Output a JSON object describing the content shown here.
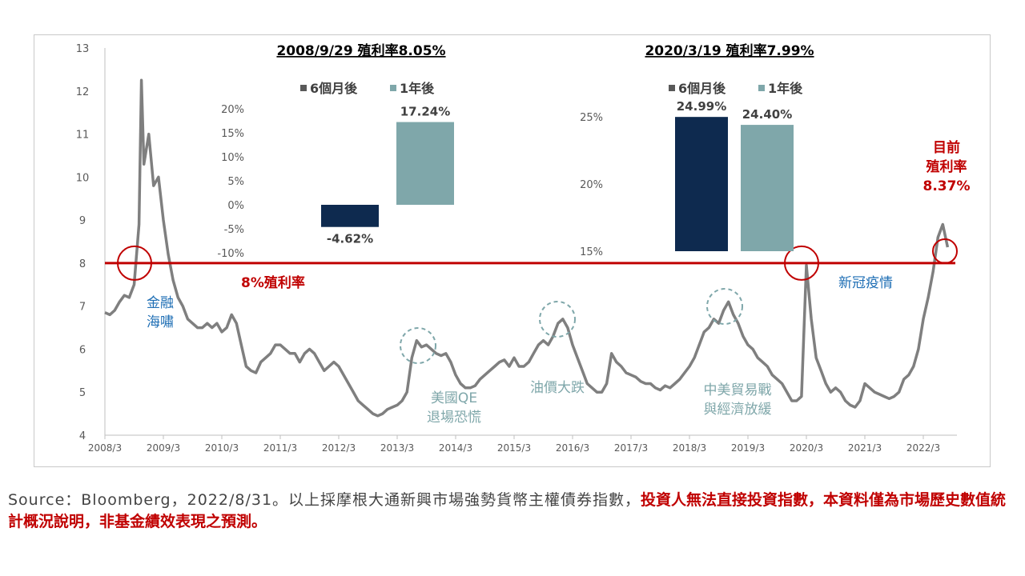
{
  "chart_data": {
    "type": "line",
    "xlabel": "",
    "ylabel": "",
    "ylim": [
      4,
      13
    ],
    "y_ticks": [
      "4",
      "5",
      "6",
      "7",
      "8",
      "9",
      "10",
      "11",
      "12",
      "13"
    ],
    "x_ticks": [
      "2008/3",
      "2009/3",
      "2010/3",
      "2011/3",
      "2012/3",
      "2013/3",
      "2014/3",
      "2015/3",
      "2016/3",
      "2017/3",
      "2018/3",
      "2019/3",
      "2020/3",
      "2021/3",
      "2022/3"
    ],
    "grid": false,
    "series": [
      {
        "color": "#7f7f7f",
        "points": [
          [
            "2008/3",
            6.85
          ],
          [
            "2008/4",
            6.8
          ],
          [
            "2008/5",
            6.9
          ],
          [
            "2008/6",
            7.1
          ],
          [
            "2008/7",
            7.25
          ],
          [
            "2008/8",
            7.2
          ],
          [
            "2008/9",
            7.5
          ],
          [
            "2008/10",
            8.9
          ],
          [
            "2008/10.5",
            12.25
          ],
          [
            "2008/11",
            10.3
          ],
          [
            "2008/12",
            11.0
          ],
          [
            "2009/1",
            9.8
          ],
          [
            "2009/2",
            10.0
          ],
          [
            "2009/3",
            9.0
          ],
          [
            "2009/4",
            8.2
          ],
          [
            "2009/5",
            7.6
          ],
          [
            "2009/6",
            7.2
          ],
          [
            "2009/7",
            7.0
          ],
          [
            "2009/8",
            6.7
          ],
          [
            "2009/9",
            6.6
          ],
          [
            "2009/10",
            6.5
          ],
          [
            "2009/11",
            6.5
          ],
          [
            "2009/12",
            6.6
          ],
          [
            "2010/1",
            6.5
          ],
          [
            "2010/2",
            6.6
          ],
          [
            "2010/3",
            6.4
          ],
          [
            "2010/4",
            6.5
          ],
          [
            "2010/5",
            6.8
          ],
          [
            "2010/6",
            6.6
          ],
          [
            "2010/7",
            6.1
          ],
          [
            "2010/8",
            5.6
          ],
          [
            "2010/9",
            5.5
          ],
          [
            "2010/10",
            5.45
          ],
          [
            "2010/11",
            5.7
          ],
          [
            "2010/12",
            5.8
          ],
          [
            "2011/1",
            5.9
          ],
          [
            "2011/2",
            6.1
          ],
          [
            "2011/3",
            6.1
          ],
          [
            "2011/4",
            6.0
          ],
          [
            "2011/5",
            5.9
          ],
          [
            "2011/6",
            5.9
          ],
          [
            "2011/7",
            5.7
          ],
          [
            "2011/8",
            5.9
          ],
          [
            "2011/9",
            6.0
          ],
          [
            "2011/10",
            5.9
          ],
          [
            "2011/11",
            5.7
          ],
          [
            "2011/12",
            5.5
          ],
          [
            "2012/1",
            5.6
          ],
          [
            "2012/2",
            5.7
          ],
          [
            "2012/3",
            5.6
          ],
          [
            "2012/4",
            5.4
          ],
          [
            "2012/5",
            5.2
          ],
          [
            "2012/6",
            5.0
          ],
          [
            "2012/7",
            4.8
          ],
          [
            "2012/8",
            4.7
          ],
          [
            "2012/9",
            4.6
          ],
          [
            "2012/10",
            4.5
          ],
          [
            "2012/11",
            4.45
          ],
          [
            "2012/12",
            4.5
          ],
          [
            "2013/1",
            4.6
          ],
          [
            "2013/2",
            4.65
          ],
          [
            "2013/3",
            4.7
          ],
          [
            "2013/4",
            4.8
          ],
          [
            "2013/5",
            5.0
          ],
          [
            "2013/6",
            5.8
          ],
          [
            "2013/7",
            6.2
          ],
          [
            "2013/8",
            6.05
          ],
          [
            "2013/9",
            6.1
          ],
          [
            "2013/10",
            6.0
          ],
          [
            "2013/11",
            5.9
          ],
          [
            "2013/12",
            5.85
          ],
          [
            "2014/1",
            5.9
          ],
          [
            "2014/2",
            5.7
          ],
          [
            "2014/3",
            5.4
          ],
          [
            "2014/4",
            5.2
          ],
          [
            "2014/5",
            5.1
          ],
          [
            "2014/6",
            5.1
          ],
          [
            "2014/7",
            5.15
          ],
          [
            "2014/8",
            5.3
          ],
          [
            "2014/9",
            5.4
          ],
          [
            "2014/10",
            5.5
          ],
          [
            "2014/11",
            5.6
          ],
          [
            "2014/12",
            5.7
          ],
          [
            "2015/1",
            5.75
          ],
          [
            "2015/2",
            5.6
          ],
          [
            "2015/3",
            5.8
          ],
          [
            "2015/4",
            5.6
          ],
          [
            "2015/5",
            5.6
          ],
          [
            "2015/6",
            5.7
          ],
          [
            "2015/7",
            5.9
          ],
          [
            "2015/8",
            6.1
          ],
          [
            "2015/9",
            6.2
          ],
          [
            "2015/10",
            6.1
          ],
          [
            "2015/11",
            6.3
          ],
          [
            "2015/12",
            6.6
          ],
          [
            "2016/1",
            6.7
          ],
          [
            "2016/2",
            6.5
          ],
          [
            "2016/3",
            6.1
          ],
          [
            "2016/4",
            5.8
          ],
          [
            "2016/5",
            5.5
          ],
          [
            "2016/6",
            5.2
          ],
          [
            "2016/7",
            5.1
          ],
          [
            "2016/8",
            5.0
          ],
          [
            "2016/9",
            5.0
          ],
          [
            "2016/10",
            5.2
          ],
          [
            "2016/11",
            5.9
          ],
          [
            "2016/12",
            5.7
          ],
          [
            "2017/1",
            5.6
          ],
          [
            "2017/2",
            5.45
          ],
          [
            "2017/3",
            5.4
          ],
          [
            "2017/4",
            5.35
          ],
          [
            "2017/5",
            5.25
          ],
          [
            "2017/6",
            5.2
          ],
          [
            "2017/7",
            5.2
          ],
          [
            "2017/8",
            5.1
          ],
          [
            "2017/9",
            5.05
          ],
          [
            "2017/10",
            5.15
          ],
          [
            "2017/11",
            5.1
          ],
          [
            "2017/12",
            5.2
          ],
          [
            "2018/1",
            5.3
          ],
          [
            "2018/2",
            5.45
          ],
          [
            "2018/3",
            5.6
          ],
          [
            "2018/4",
            5.8
          ],
          [
            "2018/5",
            6.1
          ],
          [
            "2018/6",
            6.4
          ],
          [
            "2018/7",
            6.5
          ],
          [
            "2018/8",
            6.7
          ],
          [
            "2018/9",
            6.6
          ],
          [
            "2018/10",
            6.9
          ],
          [
            "2018/11",
            7.1
          ],
          [
            "2018/12",
            6.8
          ],
          [
            "2019/1",
            6.6
          ],
          [
            "2019/2",
            6.3
          ],
          [
            "2019/3",
            6.1
          ],
          [
            "2019/4",
            6.0
          ],
          [
            "2019/5",
            5.8
          ],
          [
            "2019/6",
            5.7
          ],
          [
            "2019/7",
            5.6
          ],
          [
            "2019/8",
            5.4
          ],
          [
            "2019/9",
            5.3
          ],
          [
            "2019/10",
            5.2
          ],
          [
            "2019/11",
            5.0
          ],
          [
            "2019/12",
            4.8
          ],
          [
            "2020/1",
            4.8
          ],
          [
            "2020/2",
            4.9
          ],
          [
            "2020/3",
            7.95
          ],
          [
            "2020/4",
            6.7
          ],
          [
            "2020/5",
            5.8
          ],
          [
            "2020/6",
            5.5
          ],
          [
            "2020/7",
            5.2
          ],
          [
            "2020/8",
            5.0
          ],
          [
            "2020/9",
            5.1
          ],
          [
            "2020/10",
            5.0
          ],
          [
            "2020/11",
            4.8
          ],
          [
            "2020/12",
            4.7
          ],
          [
            "2021/1",
            4.65
          ],
          [
            "2021/2",
            4.8
          ],
          [
            "2021/3",
            5.2
          ],
          [
            "2021/4",
            5.1
          ],
          [
            "2021/5",
            5.0
          ],
          [
            "2021/6",
            4.95
          ],
          [
            "2021/7",
            4.9
          ],
          [
            "2021/8",
            4.85
          ],
          [
            "2021/9",
            4.9
          ],
          [
            "2021/10",
            5.0
          ],
          [
            "2021/11",
            5.3
          ],
          [
            "2021/12",
            5.4
          ],
          [
            "2022/1",
            5.6
          ],
          [
            "2022/2",
            6.0
          ],
          [
            "2022/3",
            6.7
          ],
          [
            "2022/4",
            7.2
          ],
          [
            "2022/5",
            7.8
          ],
          [
            "2022/6",
            8.6
          ],
          [
            "2022/7",
            8.9
          ],
          [
            "2022/8",
            8.37
          ]
        ]
      }
    ],
    "reference_line": {
      "value": 8,
      "label": "8%殖利率",
      "color": "#c00000"
    },
    "annotations": {
      "gfc": "金融\n海嘯",
      "qe": "美國QE\n退場恐慌",
      "oil": "油價大跌",
      "trade": "中美貿易戰\n與經濟放緩",
      "covid": "新冠疫情",
      "current": "目前\n殖利率\n8.37%"
    },
    "insets": [
      {
        "type": "bar",
        "title": "2008/9/29 殖利率8.05%",
        "legend": [
          "6個月後",
          "1年後"
        ],
        "colors": [
          "#0e2a4f",
          "#7fa7aa"
        ],
        "categories": [
          "6個月後",
          "1年後"
        ],
        "values": [
          -4.62,
          17.24
        ],
        "value_labels": [
          "-4.62%",
          "17.24%"
        ],
        "ylim": [
          -10,
          20
        ],
        "y_ticks": [
          "20%",
          "15%",
          "10%",
          "5%",
          "0%",
          "-5%",
          "-10%"
        ]
      },
      {
        "type": "bar",
        "title": "2020/3/19 殖利率7.99%",
        "legend": [
          "6個月後",
          "1年後"
        ],
        "colors": [
          "#0e2a4f",
          "#7fa7aa"
        ],
        "categories": [
          "6個月後",
          "1年後"
        ],
        "values": [
          24.99,
          24.4
        ],
        "value_labels": [
          "24.99%",
          "24.40%"
        ],
        "ylim": [
          15,
          25
        ],
        "y_ticks": [
          "25%",
          "20%",
          "15%"
        ]
      }
    ]
  },
  "footnote": {
    "source": "Source：Bloomberg，2022/8/31。以上採摩根大通新興市場強勢貨幣主權債券指數，",
    "warning": "投資人無法直接投資指數，本資料僅為市場歷史數值統計概況說明，非基金績效表現之預測。"
  }
}
